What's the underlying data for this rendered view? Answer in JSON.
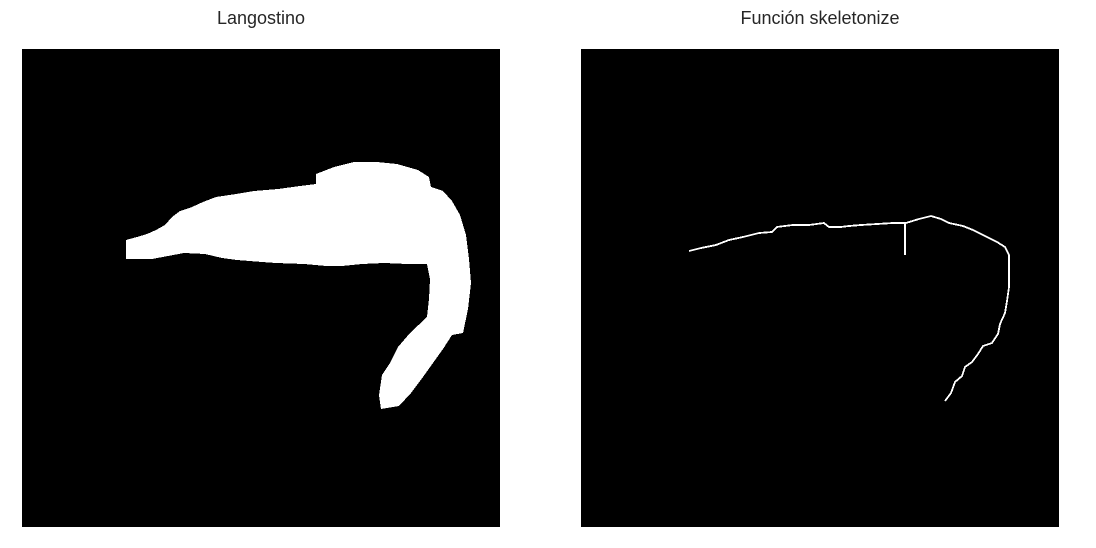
{
  "panels": [
    {
      "title": "Langostino",
      "image": "binary-mask-of-shrimp",
      "background_color": "#000000",
      "foreground_color": "#ffffff"
    },
    {
      "title": "Función skeletonize",
      "image": "skeleton-line-of-shrimp",
      "background_color": "#000000",
      "foreground_color": "#ffffff"
    }
  ]
}
